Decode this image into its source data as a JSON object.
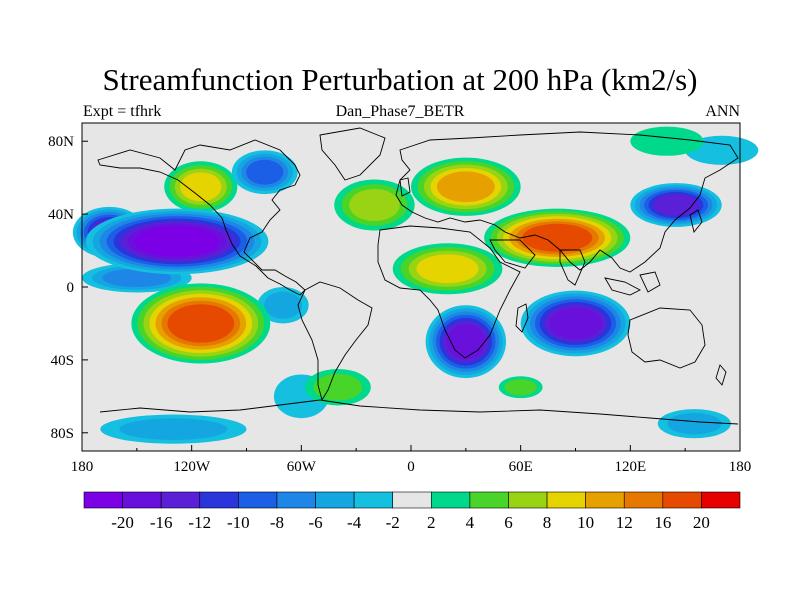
{
  "title": "Streamfunction Perturbation at 200 hPa (km2/s)",
  "subtitle_left": "Expt = tfhrk",
  "subtitle_center": "Dan_Phase7_BETR",
  "subtitle_right": "ANN",
  "chart_data": {
    "type": "heatmap",
    "projection": "cylindrical-equidistant",
    "x_range": [
      -180,
      180
    ],
    "y_range": [
      -90,
      90
    ],
    "x_ticks": [
      {
        "value": -180,
        "label": "180"
      },
      {
        "value": -120,
        "label": "120W"
      },
      {
        "value": -60,
        "label": "60W"
      },
      {
        "value": 0,
        "label": "0"
      },
      {
        "value": 60,
        "label": "60E"
      },
      {
        "value": 120,
        "label": "120E"
      },
      {
        "value": 180,
        "label": "180"
      }
    ],
    "y_ticks": [
      {
        "value": 80,
        "label": "80N"
      },
      {
        "value": 40,
        "label": "40N"
      },
      {
        "value": 0,
        "label": "0"
      },
      {
        "value": -40,
        "label": "40S"
      },
      {
        "value": -80,
        "label": "80S"
      }
    ],
    "colorbar": {
      "colors": [
        "#7b00e6",
        "#6a10dc",
        "#5a1fd6",
        "#2a35dc",
        "#1a5fe6",
        "#1e86e6",
        "#14a6e0",
        "#14bfe0",
        "#e6e6e6",
        "#00d88c",
        "#48d428",
        "#98d414",
        "#e6d400",
        "#e6a100",
        "#e67800",
        "#e64a00",
        "#e60000"
      ],
      "levels": [
        -20,
        -16,
        -12,
        -10,
        -8,
        -6,
        -4,
        -2,
        2,
        4,
        6,
        8,
        10,
        12,
        16,
        20
      ],
      "tick_labels": [
        "-20",
        "-16",
        "-12",
        "-10",
        "-8",
        "-6",
        "-4",
        "-2",
        "2",
        "4",
        "6",
        "8",
        "10",
        "12",
        "16",
        "20"
      ]
    },
    "features": [
      {
        "name": "north-pacific-low",
        "lon": -128,
        "lat": 25,
        "value": -21,
        "rx": 50,
        "ry": 18
      },
      {
        "name": "north-pacific-low-west",
        "lon": -165,
        "lat": 30,
        "value": -12,
        "rx": 20,
        "ry": 14
      },
      {
        "name": "alaska-high",
        "lon": -115,
        "lat": 55,
        "value": 9,
        "rx": 20,
        "ry": 14
      },
      {
        "name": "canada-low",
        "lon": -80,
        "lat": 63,
        "value": -9,
        "rx": 18,
        "ry": 12
      },
      {
        "name": "south-pacific-high",
        "lon": -115,
        "lat": -20,
        "value": 17,
        "rx": 38,
        "ry": 22
      },
      {
        "name": "equatorial-pacific-low",
        "lon": -150,
        "lat": 5,
        "value": -6,
        "rx": 30,
        "ry": 8
      },
      {
        "name": "central-america-low",
        "lon": -70,
        "lat": -10,
        "value": -5,
        "rx": 14,
        "ry": 10
      },
      {
        "name": "south-atlantic-high",
        "lon": -40,
        "lat": -55,
        "value": 5,
        "rx": 18,
        "ry": 10
      },
      {
        "name": "north-atlantic-high",
        "lon": -20,
        "lat": 45,
        "value": 6,
        "rx": 22,
        "ry": 14
      },
      {
        "name": "europe-high",
        "lon": 30,
        "lat": 55,
        "value": 11,
        "rx": 30,
        "ry": 16
      },
      {
        "name": "middle-east-high",
        "lon": 80,
        "lat": 27,
        "value": 19,
        "rx": 40,
        "ry": 16
      },
      {
        "name": "africa-high",
        "lon": 20,
        "lat": 10,
        "value": 8,
        "rx": 30,
        "ry": 14
      },
      {
        "name": "south-africa-low",
        "lon": 30,
        "lat": -30,
        "value": -16,
        "rx": 22,
        "ry": 20
      },
      {
        "name": "indian-ocean-low",
        "lon": 90,
        "lat": -20,
        "value": -16,
        "rx": 30,
        "ry": 18
      },
      {
        "name": "west-pacific-low",
        "lon": 145,
        "lat": 45,
        "value": -14,
        "rx": 25,
        "ry": 12
      },
      {
        "name": "arctic-low",
        "lon": 170,
        "lat": 75,
        "value": -3,
        "rx": 20,
        "ry": 8
      },
      {
        "name": "arctic-high",
        "lon": 140,
        "lat": 80,
        "value": 3,
        "rx": 20,
        "ry": 8
      },
      {
        "name": "southern-ocean-low",
        "lon": -130,
        "lat": -78,
        "value": -4,
        "rx": 40,
        "ry": 8
      },
      {
        "name": "southern-ocean-low-east",
        "lon": 155,
        "lat": -75,
        "value": -4,
        "rx": 20,
        "ry": 8
      },
      {
        "name": "indian-ocean-south-high",
        "lon": 60,
        "lat": -55,
        "value": 4,
        "rx": 12,
        "ry": 6
      },
      {
        "name": "south-pacific-low-east",
        "lon": -60,
        "lat": -60,
        "value": -3,
        "rx": 15,
        "ry": 12
      }
    ]
  }
}
